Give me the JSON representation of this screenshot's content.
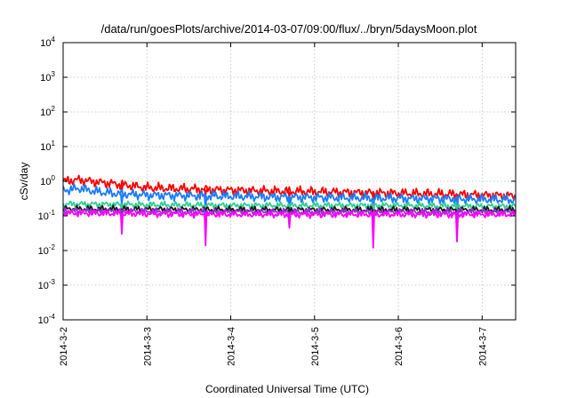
{
  "chart_data": {
    "type": "line",
    "title": "/data/run/goesPlots/archive/2014-03-07/09:00/flux/../bryn/5daysMoon.plot",
    "xlabel": "Coordinated Universal Time (UTC)",
    "ylabel": "cSv/day",
    "x_range_days": [
      0,
      5.4
    ],
    "x_ticks": [
      {
        "label": "2014-3-2",
        "day": 0
      },
      {
        "label": "2014-3-3",
        "day": 1
      },
      {
        "label": "2014-3-4",
        "day": 2
      },
      {
        "label": "2014-3-5",
        "day": 3
      },
      {
        "label": "2014-3-6",
        "day": 4
      },
      {
        "label": "2014-3-7",
        "day": 5
      }
    ],
    "y_scale": "log",
    "y_range": [
      0.0001,
      10000
    ],
    "y_ticks": [
      {
        "base": "10",
        "exp": "4",
        "value": 10000
      },
      {
        "base": "10",
        "exp": "3",
        "value": 1000
      },
      {
        "base": "10",
        "exp": "2",
        "value": 100
      },
      {
        "base": "10",
        "exp": "1",
        "value": 10
      },
      {
        "base": "10",
        "exp": "0",
        "value": 1
      },
      {
        "base": "10",
        "exp": "-1",
        "value": 0.1
      },
      {
        "base": "10",
        "exp": "-2",
        "value": 0.01
      },
      {
        "base": "10",
        "exp": "-3",
        "value": 0.001
      },
      {
        "base": "10",
        "exp": "-4",
        "value": 0.0001
      }
    ],
    "grid": true,
    "dips_days": [
      0.7,
      1.7,
      2.7,
      3.7,
      4.7
    ],
    "series": [
      {
        "color": "#ff0000",
        "x": [
          0,
          0.2,
          0.4,
          0.6,
          0.8,
          1.0,
          1.5,
          2.0,
          2.5,
          3.0,
          3.5,
          4.0,
          4.5,
          5.0,
          5.4
        ],
        "y": [
          1.0,
          1.1,
          0.95,
          0.85,
          0.75,
          0.65,
          0.6,
          0.55,
          0.52,
          0.5,
          0.47,
          0.45,
          0.43,
          0.4,
          0.38
        ],
        "dips": [
          0.5,
          0.4,
          0.35,
          0.3,
          0.28
        ]
      },
      {
        "color": "#1a7cff",
        "x": [
          0,
          0.2,
          0.4,
          0.6,
          0.8,
          1.0,
          1.5,
          2.0,
          2.5,
          3.0,
          3.5,
          4.0,
          4.5,
          5.0,
          5.4
        ],
        "y": [
          0.55,
          0.62,
          0.5,
          0.45,
          0.42,
          0.4,
          0.38,
          0.37,
          0.35,
          0.34,
          0.33,
          0.32,
          0.31,
          0.3,
          0.29
        ],
        "dips": [
          0.2,
          0.15,
          0.12,
          0.1,
          0.1
        ]
      },
      {
        "color": "#2fcf8f",
        "x": [
          0,
          1.0,
          2.0,
          3.0,
          4.0,
          5.0,
          5.4
        ],
        "y": [
          0.22,
          0.21,
          0.2,
          0.2,
          0.2,
          0.19,
          0.19
        ],
        "dips": [
          0.1,
          0.09,
          0.08,
          0.08,
          0.08
        ]
      },
      {
        "color": "#1a1a1a",
        "x": [
          0,
          1.0,
          2.0,
          3.0,
          4.0,
          5.0,
          5.4
        ],
        "y": [
          0.16,
          0.155,
          0.15,
          0.15,
          0.15,
          0.15,
          0.15
        ],
        "dips": [
          0.09,
          0.08,
          0.07,
          0.07,
          0.07
        ]
      },
      {
        "color": "#9b30d9",
        "x": [
          0,
          1.0,
          2.0,
          3.0,
          4.0,
          5.0,
          5.4
        ],
        "y": [
          0.14,
          0.135,
          0.13,
          0.13,
          0.13,
          0.13,
          0.13
        ],
        "dips": [
          0.07,
          0.06,
          0.06,
          0.06,
          0.06
        ]
      },
      {
        "color": "#ff00ff",
        "x": [
          0,
          1.0,
          2.0,
          3.0,
          4.0,
          5.0,
          5.4
        ],
        "y": [
          0.12,
          0.115,
          0.11,
          0.11,
          0.11,
          0.11,
          0.11
        ],
        "dips": [
          0.03,
          0.014,
          0.045,
          0.012,
          0.018
        ]
      }
    ]
  }
}
